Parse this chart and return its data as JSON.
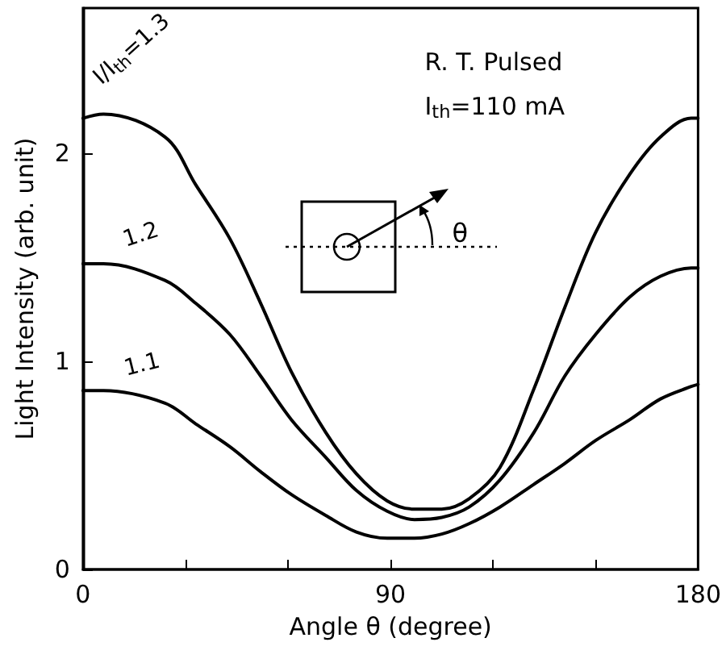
{
  "chart_data": {
    "type": "line",
    "xlabel": "Angle θ (degree)",
    "ylabel": "Light Intensity (arb. unit)",
    "xlim": [
      0,
      180
    ],
    "ylim": [
      0,
      2.7
    ],
    "xticks": [
      0,
      {
        "value": 30,
        "label": null
      },
      {
        "value": 60,
        "label": null
      },
      90,
      {
        "value": 120,
        "label": null
      },
      {
        "value": 150,
        "label": null
      },
      180
    ],
    "yticks": [
      0,
      1,
      2
    ],
    "x": [
      0,
      6,
      24,
      33,
      43,
      52,
      61,
      71,
      80,
      89,
      97,
      105,
      113,
      122,
      132,
      141,
      150,
      160,
      169,
      178,
      180
    ],
    "series": [
      {
        "name": "I/I$_{th}$=1.3",
        "color": "#000000",
        "values": [
          2.17,
          2.19,
          2.08,
          1.85,
          1.59,
          1.28,
          0.95,
          0.66,
          0.46,
          0.33,
          0.29,
          0.29,
          0.34,
          0.49,
          0.87,
          1.26,
          1.62,
          1.9,
          2.08,
          2.17,
          2.17
        ]
      },
      {
        "name": "1.2",
        "color": "#000000",
        "values": [
          1.47,
          1.47,
          1.39,
          1.28,
          1.13,
          0.93,
          0.72,
          0.54,
          0.38,
          0.28,
          0.24,
          0.25,
          0.3,
          0.43,
          0.66,
          0.93,
          1.13,
          1.31,
          1.41,
          1.45,
          1.45
        ]
      },
      {
        "name": "1.1",
        "color": "#000000",
        "values": [
          0.86,
          0.86,
          0.8,
          0.7,
          0.59,
          0.47,
          0.36,
          0.26,
          0.18,
          0.15,
          0.15,
          0.17,
          0.22,
          0.3,
          0.41,
          0.51,
          0.62,
          0.72,
          0.82,
          0.88,
          0.89
        ]
      }
    ],
    "annotations": [
      "R. T. Pulsed",
      "I$_{th}$=110 mA",
      "θ"
    ],
    "grid": false,
    "marker": "none",
    "line_style": "solid"
  }
}
